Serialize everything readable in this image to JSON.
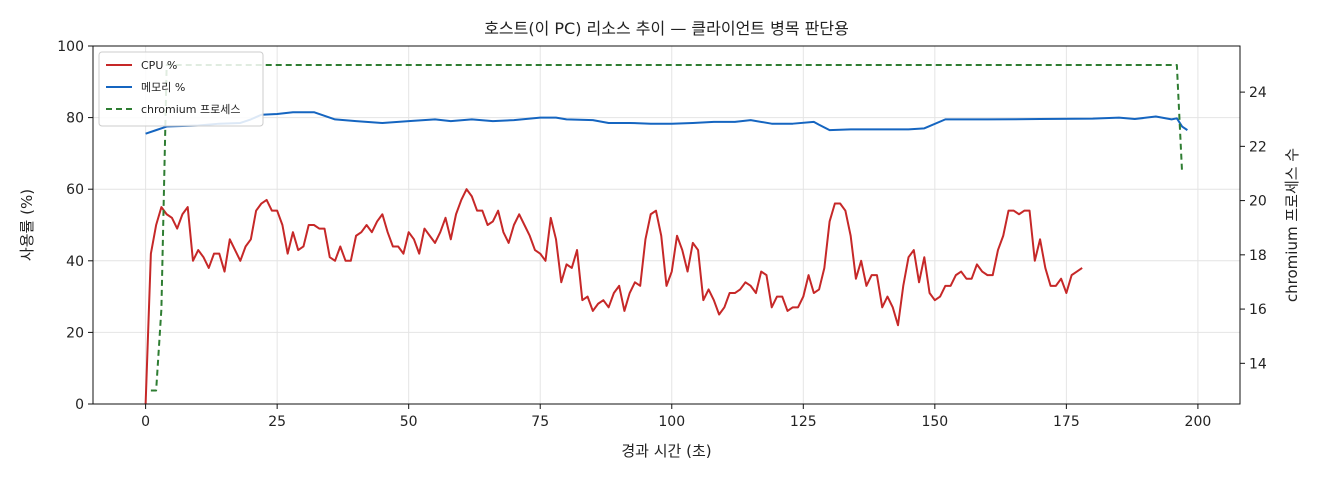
{
  "chart_data": {
    "type": "line",
    "title": "호스트(이 PC) 리소스 추이 — 클라이언트 병목 판단용",
    "xlabel": "경과 시간 (초)",
    "ylabel": "사용률 (%)",
    "y2label": "chromium 프로세스 수",
    "xlim": [
      -10,
      208
    ],
    "ylim": [
      0,
      100
    ],
    "y2lim": [
      12.5,
      25.7
    ],
    "xticks": [
      0,
      25,
      50,
      75,
      100,
      125,
      150,
      175,
      200
    ],
    "yticks": [
      0,
      20,
      40,
      60,
      80,
      100
    ],
    "y2ticks": [
      14,
      16,
      18,
      20,
      22,
      24
    ],
    "grid": true,
    "legend_position": "top-left",
    "colors": {
      "cpu": "#c62828",
      "mem": "#1565c0",
      "proc": "#2e7d32"
    },
    "series": [
      {
        "name": "CPU %",
        "axis": "left",
        "style": "solid",
        "points": [
          [
            0,
            0
          ],
          [
            1,
            42
          ],
          [
            2,
            50
          ],
          [
            3,
            55
          ],
          [
            4,
            53
          ],
          [
            5,
            52
          ],
          [
            6,
            49
          ],
          [
            7,
            53
          ],
          [
            8,
            55
          ],
          [
            9,
            40
          ],
          [
            10,
            43
          ],
          [
            11,
            41
          ],
          [
            12,
            38
          ],
          [
            13,
            42
          ],
          [
            14,
            42
          ],
          [
            15,
            37
          ],
          [
            16,
            46
          ],
          [
            17,
            43
          ],
          [
            18,
            40
          ],
          [
            19,
            44
          ],
          [
            20,
            46
          ],
          [
            21,
            54
          ],
          [
            22,
            56
          ],
          [
            23,
            57
          ],
          [
            24,
            54
          ],
          [
            25,
            54
          ],
          [
            26,
            50
          ],
          [
            27,
            42
          ],
          [
            28,
            48
          ],
          [
            29,
            43
          ],
          [
            30,
            44
          ],
          [
            31,
            50
          ],
          [
            32,
            50
          ],
          [
            33,
            49
          ],
          [
            34,
            49
          ],
          [
            35,
            41
          ],
          [
            36,
            40
          ],
          [
            37,
            44
          ],
          [
            38,
            40
          ],
          [
            39,
            40
          ],
          [
            40,
            47
          ],
          [
            41,
            48
          ],
          [
            42,
            50
          ],
          [
            43,
            48
          ],
          [
            44,
            51
          ],
          [
            45,
            53
          ],
          [
            46,
            48
          ],
          [
            47,
            44
          ],
          [
            48,
            44
          ],
          [
            49,
            42
          ],
          [
            50,
            48
          ],
          [
            51,
            46
          ],
          [
            52,
            42
          ],
          [
            53,
            49
          ],
          [
            54,
            47
          ],
          [
            55,
            45
          ],
          [
            56,
            48
          ],
          [
            57,
            52
          ],
          [
            58,
            46
          ],
          [
            59,
            53
          ],
          [
            60,
            57
          ],
          [
            61,
            60
          ],
          [
            62,
            58
          ],
          [
            63,
            54
          ],
          [
            64,
            54
          ],
          [
            65,
            50
          ],
          [
            66,
            51
          ],
          [
            67,
            54
          ],
          [
            68,
            48
          ],
          [
            69,
            45
          ],
          [
            70,
            50
          ],
          [
            71,
            53
          ],
          [
            72,
            50
          ],
          [
            73,
            47
          ],
          [
            74,
            43
          ],
          [
            75,
            42
          ],
          [
            76,
            40
          ],
          [
            77,
            52
          ],
          [
            78,
            46
          ],
          [
            79,
            34
          ],
          [
            80,
            39
          ],
          [
            81,
            38
          ],
          [
            82,
            43
          ],
          [
            83,
            29
          ],
          [
            84,
            30
          ],
          [
            85,
            26
          ],
          [
            86,
            28
          ],
          [
            87,
            29
          ],
          [
            88,
            27
          ],
          [
            89,
            31
          ],
          [
            90,
            33
          ],
          [
            91,
            26
          ],
          [
            92,
            31
          ],
          [
            93,
            34
          ],
          [
            94,
            33
          ],
          [
            95,
            46
          ],
          [
            96,
            53
          ],
          [
            97,
            54
          ],
          [
            98,
            47
          ],
          [
            99,
            33
          ],
          [
            100,
            37
          ],
          [
            101,
            47
          ],
          [
            102,
            43
          ],
          [
            103,
            37
          ],
          [
            104,
            45
          ],
          [
            105,
            43
          ],
          [
            106,
            29
          ],
          [
            107,
            32
          ],
          [
            108,
            29
          ],
          [
            109,
            25
          ],
          [
            110,
            27
          ],
          [
            111,
            31
          ],
          [
            112,
            31
          ],
          [
            113,
            32
          ],
          [
            114,
            34
          ],
          [
            115,
            33
          ],
          [
            116,
            31
          ],
          [
            117,
            37
          ],
          [
            118,
            36
          ],
          [
            119,
            27
          ],
          [
            120,
            30
          ],
          [
            121,
            30
          ],
          [
            122,
            26
          ],
          [
            123,
            27
          ],
          [
            124,
            27
          ],
          [
            125,
            30
          ],
          [
            126,
            36
          ],
          [
            127,
            31
          ],
          [
            128,
            32
          ],
          [
            129,
            38
          ],
          [
            130,
            51
          ],
          [
            131,
            56
          ],
          [
            132,
            56
          ],
          [
            133,
            54
          ],
          [
            134,
            47
          ],
          [
            135,
            35
          ],
          [
            136,
            40
          ],
          [
            137,
            33
          ],
          [
            138,
            36
          ],
          [
            139,
            36
          ],
          [
            140,
            27
          ],
          [
            141,
            30
          ],
          [
            142,
            27
          ],
          [
            143,
            22
          ],
          [
            144,
            33
          ],
          [
            145,
            41
          ],
          [
            146,
            43
          ],
          [
            147,
            34
          ],
          [
            148,
            41
          ],
          [
            149,
            31
          ],
          [
            150,
            29
          ],
          [
            151,
            30
          ],
          [
            152,
            33
          ],
          [
            153,
            33
          ],
          [
            154,
            36
          ],
          [
            155,
            37
          ],
          [
            156,
            35
          ],
          [
            157,
            35
          ],
          [
            158,
            39
          ],
          [
            159,
            37
          ],
          [
            160,
            36
          ],
          [
            161,
            36
          ],
          [
            162,
            43
          ],
          [
            163,
            47
          ],
          [
            164,
            54
          ],
          [
            165,
            54
          ],
          [
            166,
            53
          ],
          [
            167,
            54
          ],
          [
            168,
            54
          ],
          [
            169,
            40
          ],
          [
            170,
            46
          ],
          [
            171,
            38
          ],
          [
            172,
            33
          ],
          [
            173,
            33
          ],
          [
            174,
            35
          ],
          [
            175,
            31
          ],
          [
            176,
            36
          ],
          [
            177,
            37
          ],
          [
            178,
            38
          ]
        ]
      },
      {
        "name": "메모리 %",
        "axis": "left",
        "style": "solid",
        "points": [
          [
            0,
            75.5
          ],
          [
            2,
            76.5
          ],
          [
            4,
            77.5
          ],
          [
            10,
            77.8
          ],
          [
            14,
            78.3
          ],
          [
            18,
            78.5
          ],
          [
            20,
            79.5
          ],
          [
            22,
            80.8
          ],
          [
            25,
            81
          ],
          [
            28,
            81.5
          ],
          [
            32,
            81.5
          ],
          [
            36,
            79.5
          ],
          [
            40,
            79
          ],
          [
            45,
            78.5
          ],
          [
            50,
            79
          ],
          [
            55,
            79.5
          ],
          [
            58,
            79
          ],
          [
            62,
            79.5
          ],
          [
            66,
            79
          ],
          [
            70,
            79.3
          ],
          [
            75,
            80
          ],
          [
            78,
            80
          ],
          [
            80,
            79.5
          ],
          [
            85,
            79.3
          ],
          [
            88,
            78.5
          ],
          [
            92,
            78.5
          ],
          [
            96,
            78.3
          ],
          [
            100,
            78.3
          ],
          [
            104,
            78.5
          ],
          [
            108,
            78.8
          ],
          [
            112,
            78.8
          ],
          [
            115,
            79.3
          ],
          [
            119,
            78.3
          ],
          [
            123,
            78.3
          ],
          [
            127,
            78.8
          ],
          [
            128,
            78
          ],
          [
            130,
            76.5
          ],
          [
            134,
            76.7
          ],
          [
            140,
            76.7
          ],
          [
            145,
            76.7
          ],
          [
            148,
            77
          ],
          [
            152,
            79.5
          ],
          [
            160,
            79.5
          ],
          [
            170,
            79.6
          ],
          [
            180,
            79.7
          ],
          [
            185,
            80
          ],
          [
            188,
            79.6
          ],
          [
            192,
            80.3
          ],
          [
            195,
            79.5
          ],
          [
            196,
            79.8
          ],
          [
            197,
            77.5
          ],
          [
            198,
            76.5
          ]
        ]
      },
      {
        "name": "chromium 프로세스",
        "axis": "right",
        "style": "dashed",
        "points": [
          [
            1,
            13
          ],
          [
            2,
            13
          ],
          [
            3,
            16
          ],
          [
            4,
            25
          ],
          [
            196,
            25
          ],
          [
            197,
            21
          ]
        ]
      }
    ]
  }
}
